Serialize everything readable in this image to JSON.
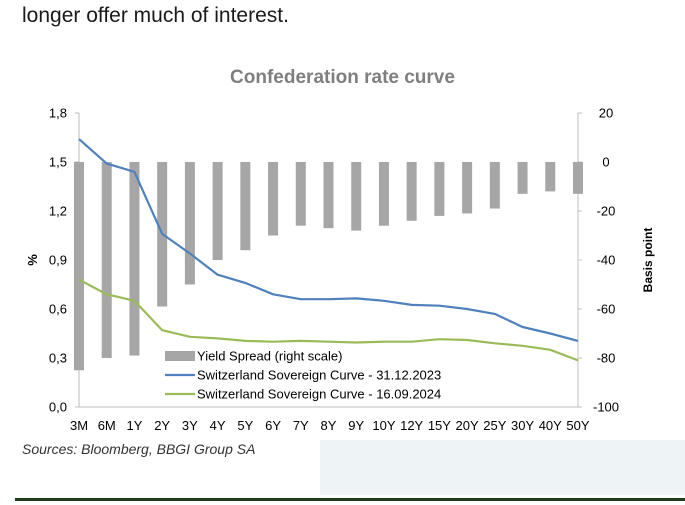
{
  "intro_text": "longer offer much of interest.",
  "source_text": "Sources: Bloomberg, BBGI Group SA",
  "colors": {
    "bars": "#a6a6a6",
    "series_2023": "#4f81bd",
    "series_2024": "#9bbb59",
    "axis": "#bfbfbf",
    "title": "#7f7f7f"
  },
  "chart_data": {
    "type": "bar+line",
    "title": "Confederation rate curve",
    "categories": [
      "3M",
      "6M",
      "1Y",
      "2Y",
      "3Y",
      "4Y",
      "5Y",
      "6Y",
      "7Y",
      "8Y",
      "9Y",
      "10Y",
      "12Y",
      "15Y",
      "20Y",
      "25Y",
      "30Y",
      "40Y",
      "50Y"
    ],
    "ylabel_left": "%",
    "ylabel_right": "Basis point",
    "ylim_left": [
      0,
      1.8
    ],
    "yticks_left": [
      "0,0",
      "0,3",
      "0,6",
      "0,9",
      "1,2",
      "1,5",
      "1,8"
    ],
    "ylim_right": [
      -100,
      20
    ],
    "yticks_right": [
      "-100",
      "-80",
      "-60",
      "-40",
      "-20",
      "0",
      "20"
    ],
    "legend_position": "bottom-left",
    "bars": {
      "name": "Yield Spread (right scale)",
      "axis": "right",
      "values": [
        -85,
        -80,
        -79,
        -59,
        -50,
        -40,
        -36,
        -30,
        -26,
        -27,
        -28,
        -26,
        -24,
        -22,
        -21,
        -19,
        -13,
        -12,
        -13
      ]
    },
    "series": [
      {
        "name": "Switzerland Sovereign Curve - 31.12.2023",
        "axis": "left",
        "values": [
          1.64,
          1.49,
          1.44,
          1.06,
          0.94,
          0.81,
          0.76,
          0.69,
          0.66,
          0.66,
          0.665,
          0.65,
          0.625,
          0.62,
          0.6,
          0.57,
          0.49,
          0.45,
          0.405
        ]
      },
      {
        "name": "Switzerland Sovereign Curve - 16.09.2024",
        "axis": "left",
        "values": [
          0.78,
          0.69,
          0.65,
          0.47,
          0.43,
          0.42,
          0.405,
          0.4,
          0.405,
          0.4,
          0.395,
          0.4,
          0.4,
          0.415,
          0.41,
          0.39,
          0.375,
          0.35,
          0.285
        ]
      }
    ]
  }
}
